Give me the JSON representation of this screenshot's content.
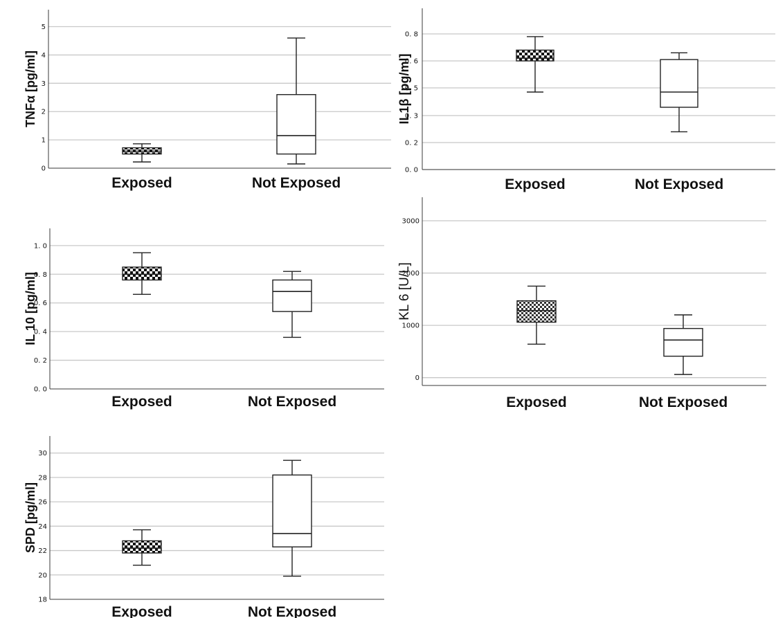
{
  "colors": {
    "grid": "#c8c8c8",
    "box_outline": "#222222",
    "exposed_fill": "checkerboard-black-white",
    "not_exposed_fill": "#ffffff"
  },
  "chart_data": [
    {
      "type": "box",
      "ylabel": "TNFα [pg/ml]",
      "ylim": [
        0,
        5.6
      ],
      "yticks": [
        "0",
        "1",
        "2",
        "3",
        "4",
        "5"
      ],
      "grid": true,
      "categories": [
        "Exposed",
        "Not Exposed"
      ],
      "boxes": [
        {
          "category": "Exposed",
          "min": 0.22,
          "q1": 0.5,
          "median": 0.6,
          "q3": 0.72,
          "max": 0.86
        },
        {
          "category": "Not Exposed",
          "min": 0.15,
          "q1": 0.5,
          "median": 1.15,
          "q3": 2.6,
          "max": 4.6
        }
      ]
    },
    {
      "type": "box",
      "ylabel": "IL1β [pg/ml]",
      "ylim": [
        0,
        0.98
      ],
      "yticks": [
        "0. 0",
        "0. 2",
        "0. 3",
        "0. 5",
        "0. 6",
        "0. 8"
      ],
      "grid": true,
      "categories": [
        "Exposed",
        "Not Exposed"
      ],
      "boxes": [
        {
          "category": "Exposed",
          "min": 0.47,
          "q1": 0.6,
          "median": 0.62,
          "q3": 0.68,
          "max": 0.78
        },
        {
          "category": "Not Exposed",
          "min": 0.24,
          "q1": 0.36,
          "median": 0.47,
          "q3": 0.61,
          "max": 0.66
        }
      ]
    },
    {
      "type": "box",
      "ylabel": "IL 10 [pg/ml]",
      "ylim": [
        0,
        1.12
      ],
      "yticks": [
        "0. 0",
        "0. 2",
        "0. 4",
        "0. 6",
        "0. 8",
        "1. 0"
      ],
      "grid": true,
      "categories": [
        "Exposed",
        "Not Exposed"
      ],
      "boxes": [
        {
          "category": "Exposed",
          "min": 0.66,
          "q1": 0.76,
          "median": 0.8,
          "q3": 0.85,
          "max": 0.95
        },
        {
          "category": "Not Exposed",
          "min": 0.36,
          "q1": 0.54,
          "median": 0.68,
          "q3": 0.76,
          "max": 0.82
        }
      ]
    },
    {
      "type": "box",
      "ylabel": "KL 6 [U/L]",
      "ylim": [
        -150,
        3450
      ],
      "yticks": [
        "0",
        "1000",
        "2000",
        "3000"
      ],
      "grid": true,
      "categories": [
        "Exposed",
        "Not Exposed"
      ],
      "boxes": [
        {
          "category": "Exposed",
          "min": 640,
          "q1": 1060,
          "median": 1280,
          "q3": 1470,
          "max": 1750
        },
        {
          "category": "Not Exposed",
          "min": 60,
          "q1": 410,
          "median": 720,
          "q3": 940,
          "max": 1200
        }
      ]
    },
    {
      "type": "box",
      "ylabel": "SPD [pg/ml]",
      "ylim": [
        18,
        31.4
      ],
      "yticks": [
        "18",
        "20",
        "22",
        "24",
        "26",
        "28",
        "30"
      ],
      "grid": true,
      "categories": [
        "Exposed",
        "Not Exposed"
      ],
      "boxes": [
        {
          "category": "Exposed",
          "min": 20.8,
          "q1": 21.8,
          "median": 22.2,
          "q3": 22.8,
          "max": 23.7
        },
        {
          "category": "Not Exposed",
          "min": 19.9,
          "q1": 22.3,
          "median": 23.4,
          "q3": 28.2,
          "max": 29.4
        }
      ]
    }
  ]
}
